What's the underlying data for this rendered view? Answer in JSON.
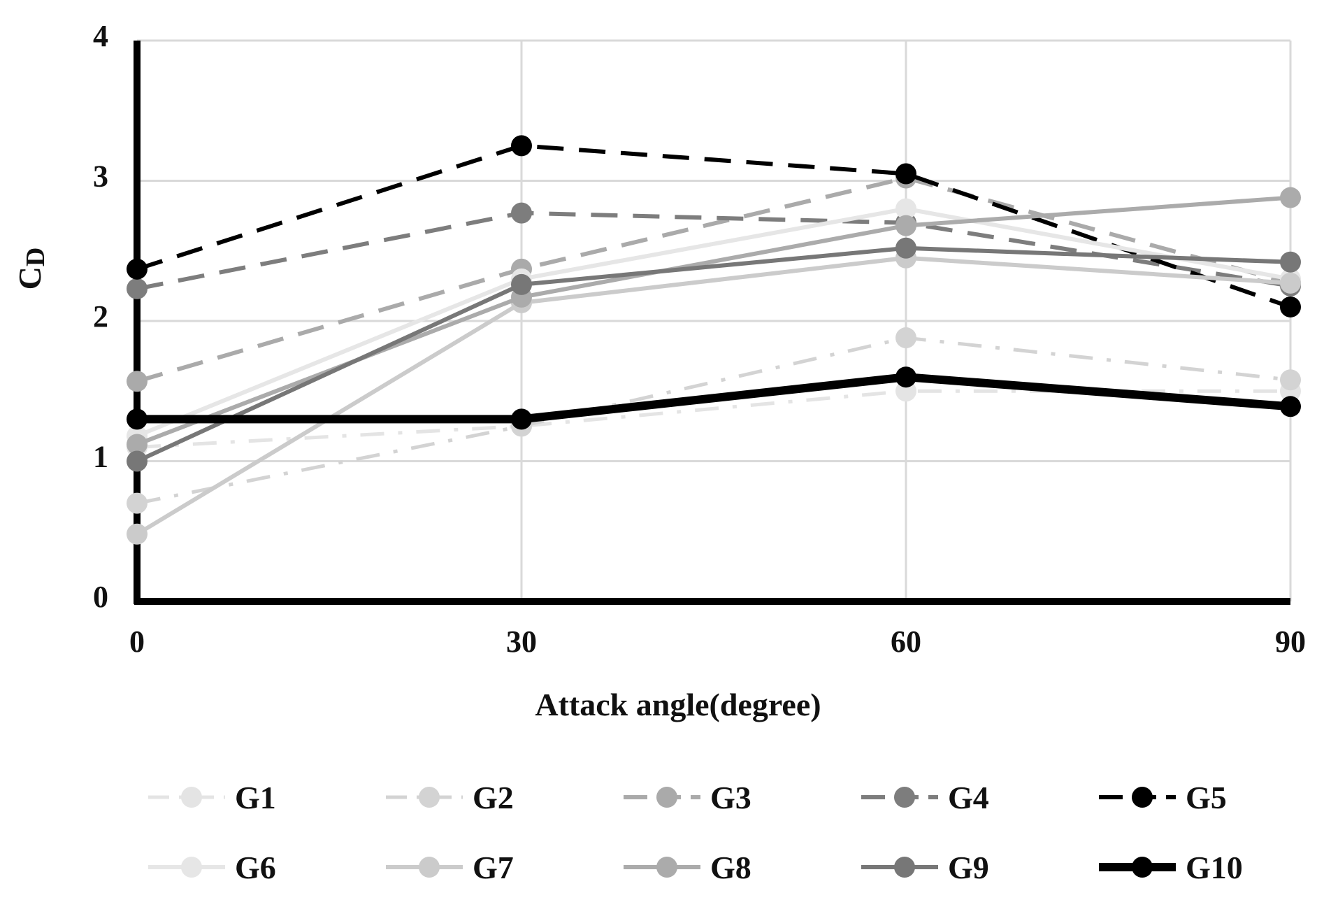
{
  "chart_data": {
    "type": "line",
    "title": "",
    "xlabel": "Attack angle(degree)",
    "ylabel_main": "C",
    "ylabel_sub": "D",
    "x": [
      0,
      30,
      60,
      90
    ],
    "x_ticks": [
      "0",
      "30",
      "60",
      "90"
    ],
    "y_ticks": [
      "0",
      "1",
      "2",
      "3",
      "4"
    ],
    "xlim": [
      0,
      90
    ],
    "ylim": [
      0,
      4
    ],
    "grid": true,
    "legend_position": "bottom",
    "series": [
      {
        "name": "G1",
        "values": [
          1.1,
          1.25,
          1.5,
          1.5
        ],
        "color": "#e4e4e4",
        "style": "dashdot",
        "width": 5
      },
      {
        "name": "G2",
        "values": [
          0.7,
          1.25,
          1.88,
          1.58
        ],
        "color": "#d3d3d3",
        "style": "dashdot",
        "width": 5
      },
      {
        "name": "G3",
        "values": [
          1.57,
          2.37,
          3.02,
          2.27
        ],
        "color": "#aaaaaa",
        "style": "dashed",
        "width": 6
      },
      {
        "name": "G4",
        "values": [
          2.23,
          2.77,
          2.7,
          2.25
        ],
        "color": "#7d7d7d",
        "style": "dashed",
        "width": 6
      },
      {
        "name": "G5",
        "values": [
          2.37,
          3.25,
          3.05,
          2.1
        ],
        "color": "#000000",
        "style": "dashed",
        "width": 6
      },
      {
        "name": "G6",
        "values": [
          1.18,
          2.3,
          2.8,
          2.3
        ],
        "color": "#e6e6e6",
        "style": "solid",
        "width": 6
      },
      {
        "name": "G7",
        "values": [
          0.48,
          2.13,
          2.45,
          2.27
        ],
        "color": "#cbcbcb",
        "style": "solid",
        "width": 6
      },
      {
        "name": "G8",
        "values": [
          1.12,
          2.17,
          2.68,
          2.88
        ],
        "color": "#ababab",
        "style": "solid",
        "width": 6
      },
      {
        "name": "G9",
        "values": [
          1.0,
          2.26,
          2.52,
          2.42
        ],
        "color": "#777777",
        "style": "solid",
        "width": 6
      },
      {
        "name": "G10",
        "values": [
          1.3,
          1.3,
          1.6,
          1.39
        ],
        "color": "#000000",
        "style": "solid",
        "width": 12
      }
    ]
  }
}
